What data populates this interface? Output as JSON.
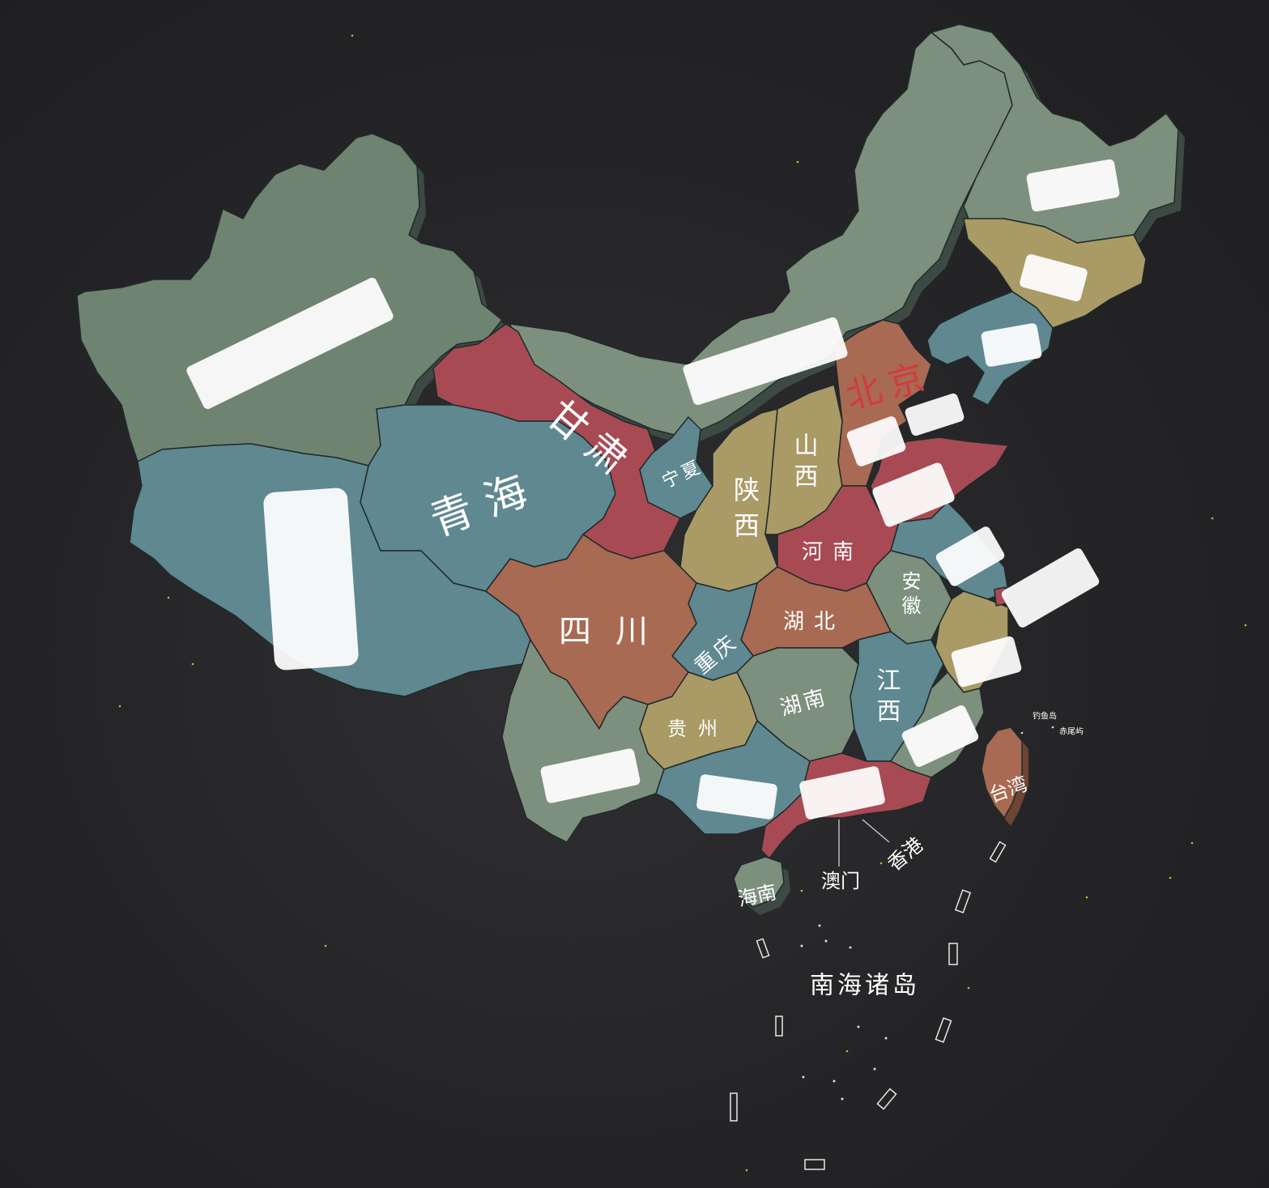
{
  "colors": {
    "green": "#6f8371",
    "green_light": "#7d8f7d",
    "teal": "#5f8891",
    "red": "#a84a54",
    "orange": "#a86a52",
    "yellow": "#a99a66",
    "side": "#3d4a43",
    "label_red": "#d13c3c",
    "background": "#242426"
  },
  "map": {
    "provinces": [
      {
        "id": "qinghai",
        "label": "青海"
      },
      {
        "id": "gansu",
        "label": "甘肃"
      },
      {
        "id": "sichuan",
        "label": "四川"
      },
      {
        "id": "shaanxi",
        "label": "陕西"
      },
      {
        "id": "shanxi",
        "label": "山西"
      },
      {
        "id": "ningxia",
        "label": "宁夏"
      },
      {
        "id": "henan",
        "label": "河南"
      },
      {
        "id": "hubei",
        "label": "湖北"
      },
      {
        "id": "anhui",
        "label": "安徽"
      },
      {
        "id": "chongqing",
        "label": "重庆"
      },
      {
        "id": "guizhou",
        "label": "贵州"
      },
      {
        "id": "hunan",
        "label": "湖南"
      },
      {
        "id": "jiangxi",
        "label": "江西"
      },
      {
        "id": "beijing",
        "label": "北京"
      },
      {
        "id": "taiwan",
        "label": "台湾"
      },
      {
        "id": "hainan",
        "label": "海南"
      }
    ],
    "callouts": {
      "macau": "澳门",
      "hongkong": "香港",
      "south_sea": "南海诸岛",
      "diaoyu": "钓鱼岛",
      "chiwei": "赤尾屿"
    }
  }
}
